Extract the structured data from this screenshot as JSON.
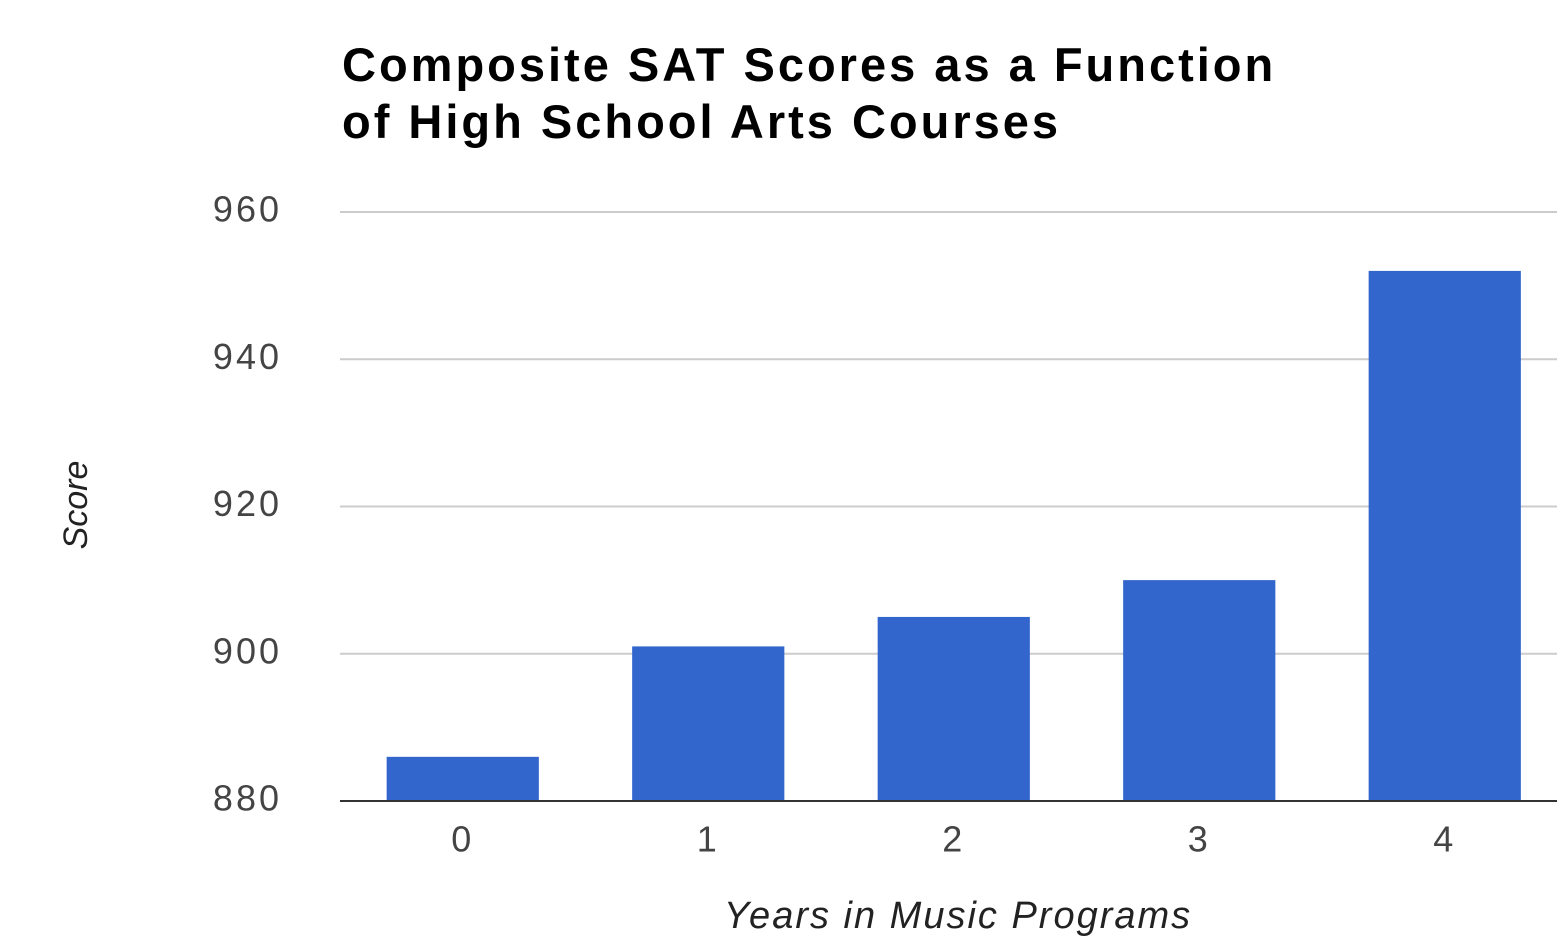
{
  "chart_data": {
    "type": "bar",
    "title": "Composite SAT Scores as a Function of High School Arts Courses",
    "x_label": "Years in Music Programs",
    "y_label": "Score",
    "categories": [
      "0",
      "1",
      "2",
      "3",
      "4"
    ],
    "values": [
      886,
      901,
      905,
      910,
      952
    ],
    "color": "#3366cc",
    "ylim": [
      880,
      960
    ],
    "yticks": [
      880,
      900,
      920,
      940,
      960
    ],
    "grid": true
  }
}
